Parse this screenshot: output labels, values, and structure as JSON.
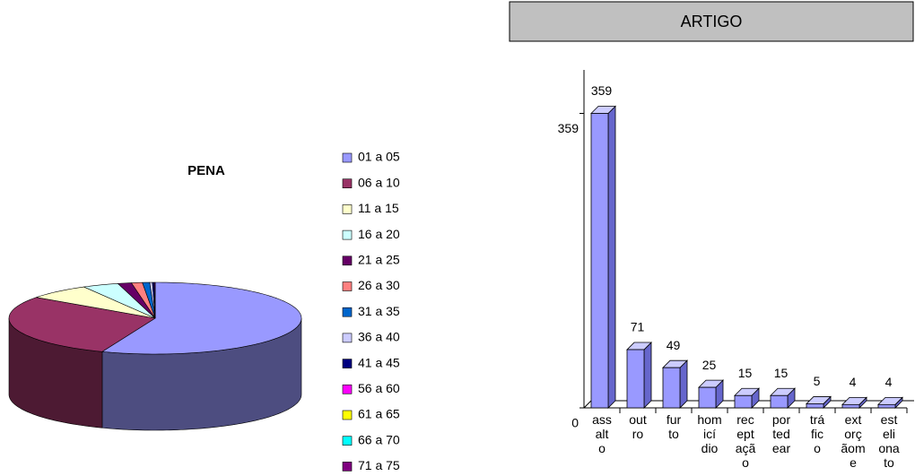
{
  "chart_data": [
    {
      "type": "pie3d",
      "title": "PENA",
      "categories": [
        "01 a 05",
        "06 a 10",
        "11 a 15",
        "16 a 20",
        "21 a 25",
        "26 a 30",
        "31 a 35",
        "36 a 40",
        "41 a 45",
        "56 a 60",
        "61 a 65",
        "66 a 70",
        "71 a 75"
      ],
      "values": [
        55.9,
        29,
        7,
        4,
        1.5,
        1.2,
        0.8,
        0.3,
        0.2,
        0,
        0,
        0,
        0.1
      ],
      "colors": [
        "#9999ff",
        "#993366",
        "#ffffcc",
        "#ccffff",
        "#660066",
        "#ff8080",
        "#0066cc",
        "#ccccff",
        "#000080",
        "#ff00ff",
        "#ffff00",
        "#00ffff",
        "#800080"
      ],
      "legend": "right"
    },
    {
      "type": "bar3d",
      "title": "ARTIGO",
      "categories": [
        "assalto",
        "outro",
        "furto",
        "homicídio",
        "receptação",
        "porte de ar",
        "tráfico",
        "extorção me",
        "estelionato"
      ],
      "values": [
        359,
        71,
        49,
        25,
        15,
        15,
        5,
        4,
        4
      ],
      "color": "#9999ff",
      "ylim": [
        0,
        412
      ],
      "yticks": [
        0,
        359
      ]
    }
  ]
}
